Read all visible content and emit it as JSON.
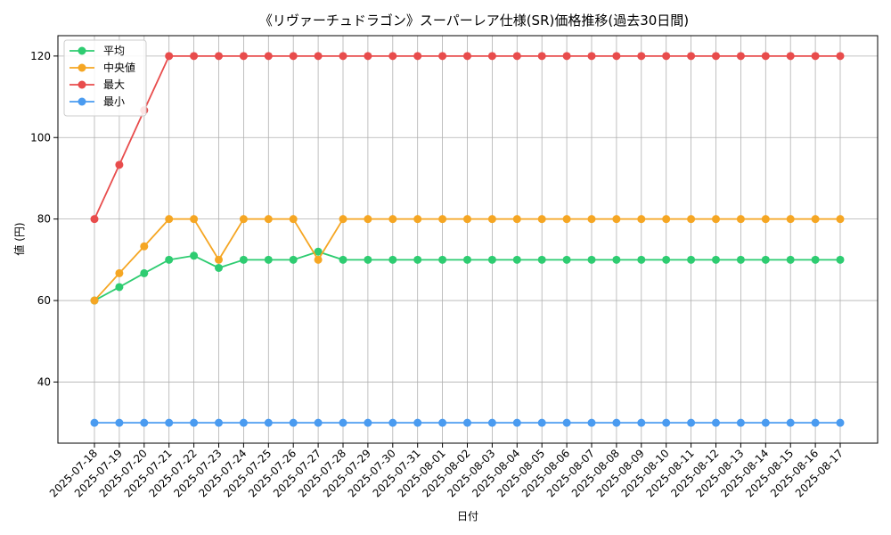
{
  "chart_data": {
    "type": "line",
    "title": "《リヴァーチュドラゴン》スーパーレア仕様(SR)価格推移(過去30日間)",
    "xlabel": "日付",
    "ylabel": "値 (円)",
    "ylim": [
      25,
      125
    ],
    "yticks": [
      40,
      60,
      80,
      100,
      120
    ],
    "grid": true,
    "legend_position": "top-left",
    "categories": [
      "2025-07-18",
      "2025-07-19",
      "2025-07-20",
      "2025-07-21",
      "2025-07-22",
      "2025-07-23",
      "2025-07-24",
      "2025-07-25",
      "2025-07-26",
      "2025-07-27",
      "2025-07-28",
      "2025-07-29",
      "2025-07-30",
      "2025-07-31",
      "2025-08-01",
      "2025-08-02",
      "2025-08-03",
      "2025-08-04",
      "2025-08-05",
      "2025-08-06",
      "2025-08-07",
      "2025-08-08",
      "2025-08-09",
      "2025-08-10",
      "2025-08-11",
      "2025-08-12",
      "2025-08-13",
      "2025-08-14",
      "2025-08-15",
      "2025-08-16",
      "2025-08-17"
    ],
    "series": [
      {
        "name": "平均",
        "color": "#2ecc71",
        "values": [
          60,
          63.3,
          66.7,
          70,
          71,
          68,
          70,
          70,
          70,
          72,
          70,
          70,
          70,
          70,
          70,
          70,
          70,
          70,
          70,
          70,
          70,
          70,
          70,
          70,
          70,
          70,
          70,
          70,
          70,
          70,
          70
        ]
      },
      {
        "name": "中央値",
        "color": "#f5a623",
        "values": [
          60,
          66.7,
          73.3,
          80,
          80,
          70,
          80,
          80,
          80,
          70,
          80,
          80,
          80,
          80,
          80,
          80,
          80,
          80,
          80,
          80,
          80,
          80,
          80,
          80,
          80,
          80,
          80,
          80,
          80,
          80,
          80
        ]
      },
      {
        "name": "最大",
        "color": "#e84c4c",
        "values": [
          80,
          93.3,
          106.7,
          120,
          120,
          120,
          120,
          120,
          120,
          120,
          120,
          120,
          120,
          120,
          120,
          120,
          120,
          120,
          120,
          120,
          120,
          120,
          120,
          120,
          120,
          120,
          120,
          120,
          120,
          120,
          120
        ]
      },
      {
        "name": "最小",
        "color": "#4a9bf0",
        "values": [
          30,
          30,
          30,
          30,
          30,
          30,
          30,
          30,
          30,
          30,
          30,
          30,
          30,
          30,
          30,
          30,
          30,
          30,
          30,
          30,
          30,
          30,
          30,
          30,
          30,
          30,
          30,
          30,
          30,
          30,
          30
        ]
      }
    ]
  }
}
